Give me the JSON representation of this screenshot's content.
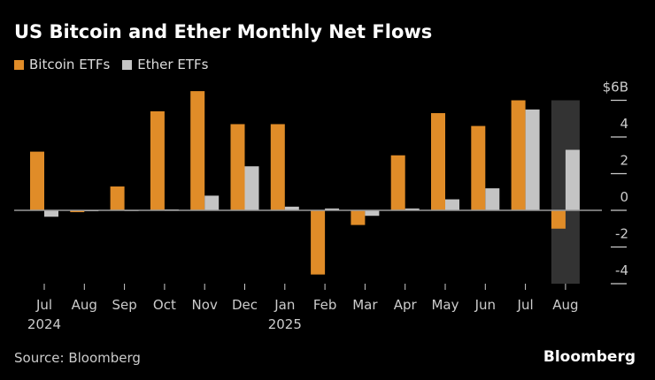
{
  "title": "US Bitcoin and Ether Monthly Net Flows",
  "source": "Source: Bloomberg",
  "brand": "Bloomberg",
  "chart_data": {
    "type": "bar",
    "title": "US Bitcoin and Ether Monthly Net Flows",
    "categories": [
      "Jul",
      "Aug",
      "Sep",
      "Oct",
      "Nov",
      "Dec",
      "Jan",
      "Feb",
      "Mar",
      "Apr",
      "May",
      "Jun",
      "Jul",
      "Aug"
    ],
    "year_labels": {
      "0": "2024",
      "6": "2025"
    },
    "series": [
      {
        "name": "Bitcoin ETFs",
        "color": "#e08c28",
        "values": [
          3.2,
          -0.1,
          1.3,
          5.4,
          6.5,
          4.7,
          4.7,
          -3.5,
          -0.8,
          3.0,
          5.3,
          4.6,
          6.0,
          -1.0
        ]
      },
      {
        "name": "Ether ETFs",
        "color": "#c4c4c4",
        "values": [
          -0.35,
          -0.05,
          0.0,
          0.05,
          0.8,
          2.4,
          0.2,
          0.1,
          -0.3,
          0.1,
          0.6,
          1.2,
          5.5,
          3.3
        ]
      }
    ],
    "ylim": [
      -4,
      6
    ],
    "yticks": [
      6,
      4,
      2,
      0,
      -2,
      -4
    ],
    "ytick_labels": [
      "$6B",
      "4",
      "2",
      "0",
      "-2",
      "-4"
    ],
    "highlighted_category_index": 13,
    "highlight_color": "#333333",
    "legend": "top-left",
    "grid": false
  }
}
